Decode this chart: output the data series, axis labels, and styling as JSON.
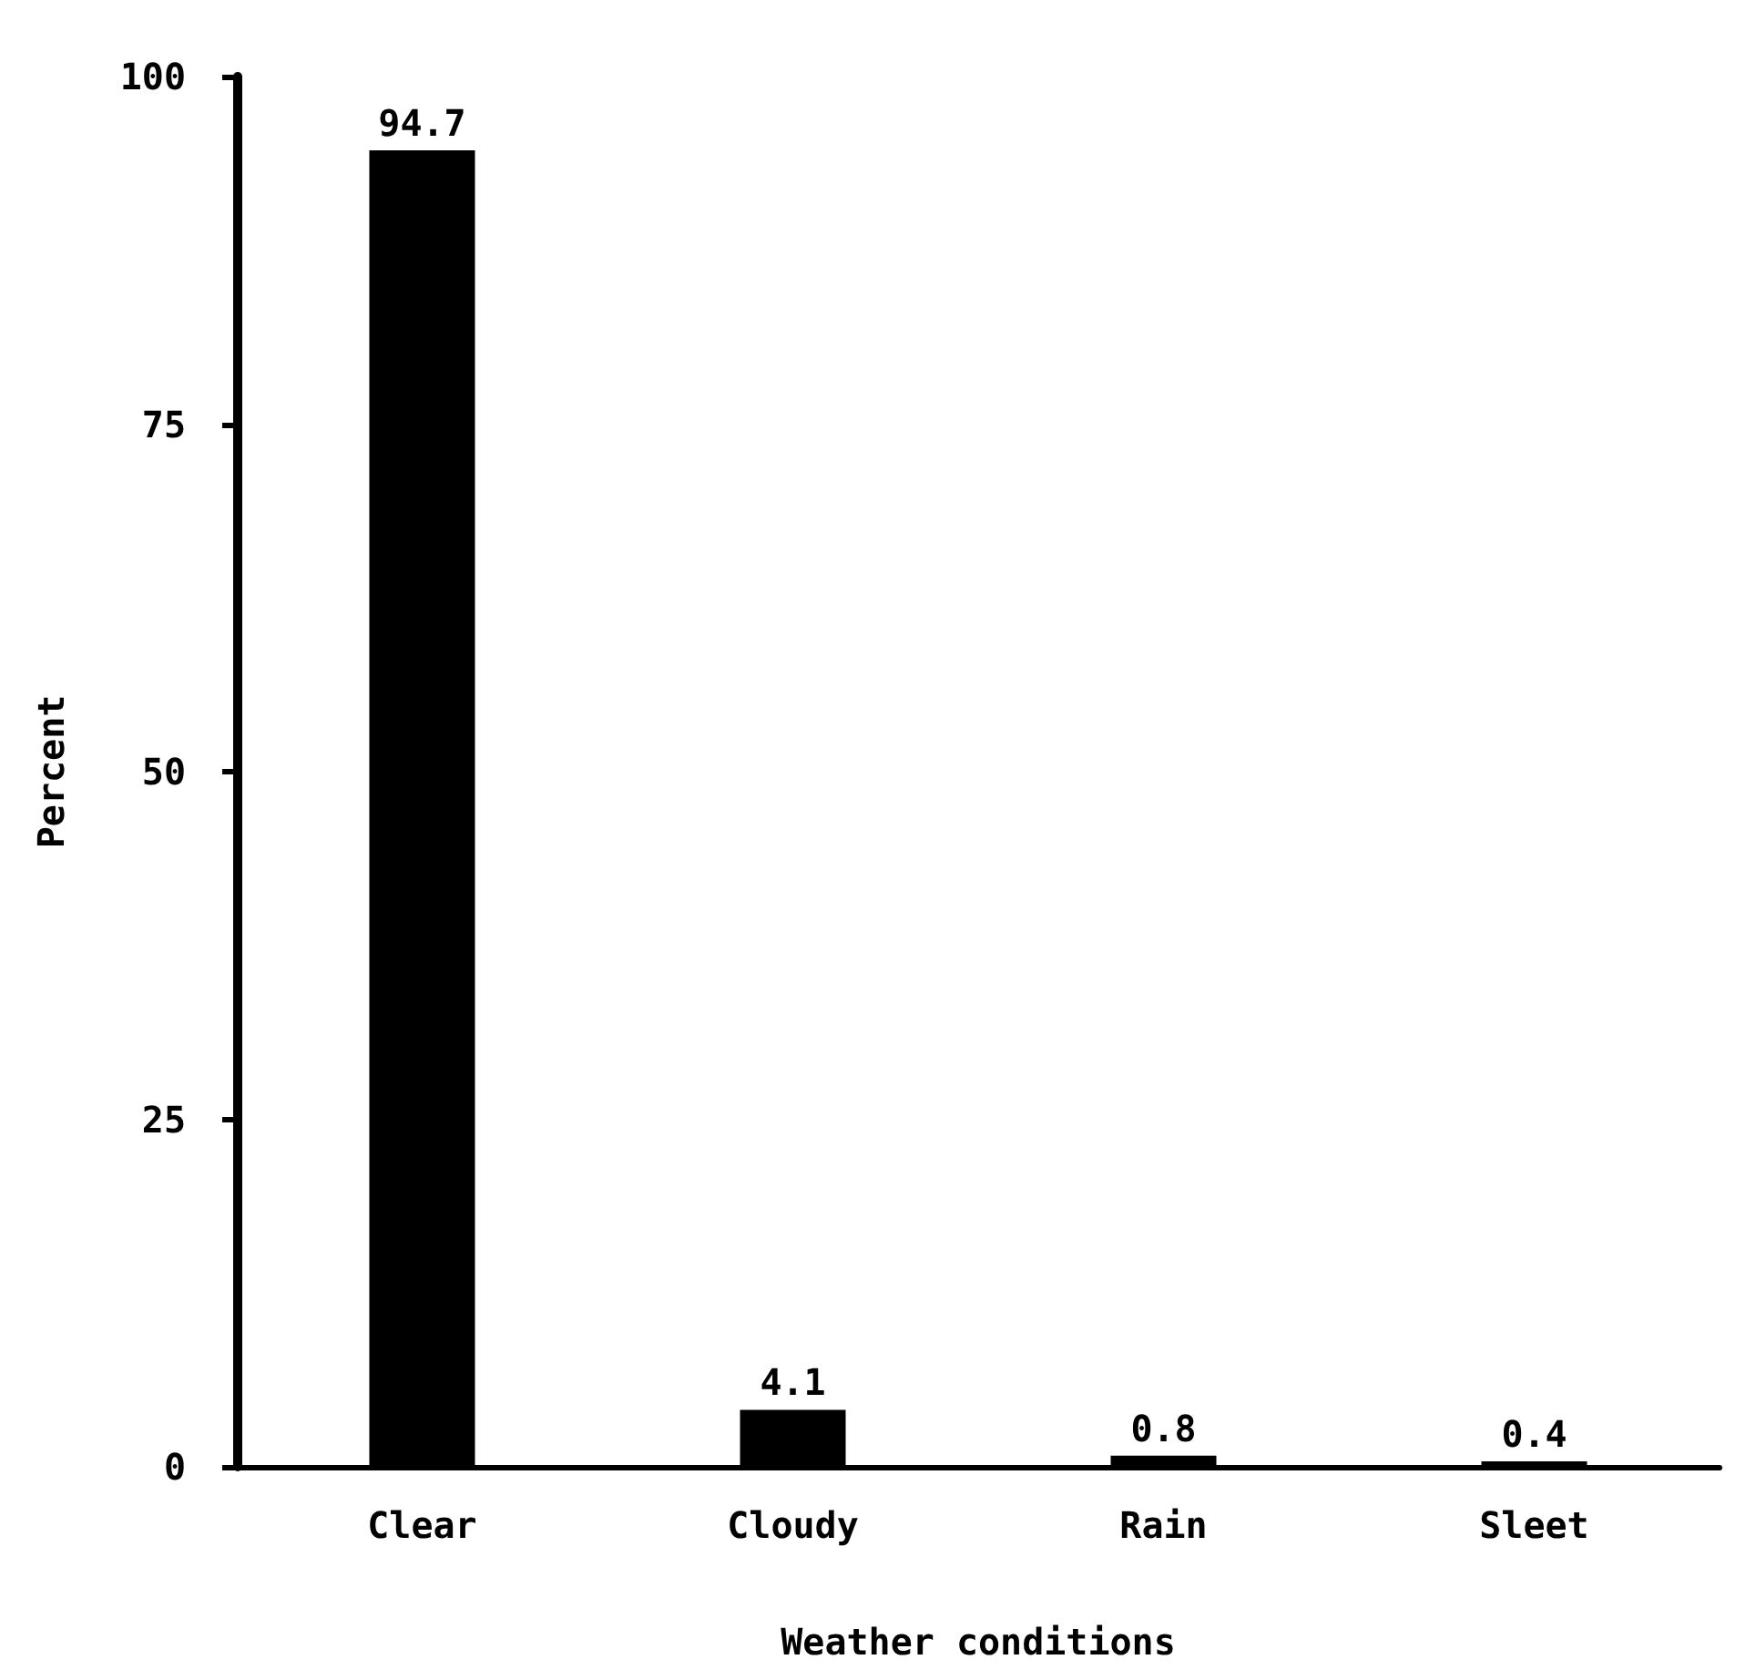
{
  "chart_data": {
    "type": "bar",
    "xlabel": "Weather conditions",
    "ylabel": "Percent",
    "categories": [
      "Clear",
      "Cloudy",
      "Rain",
      "Sleet"
    ],
    "values": [
      94.7,
      4.1,
      0.8,
      0.4
    ],
    "color": "#000000",
    "ylim": [
      0,
      100
    ],
    "yticks": [
      0,
      25,
      50,
      75,
      100
    ],
    "data_labels": true
  }
}
